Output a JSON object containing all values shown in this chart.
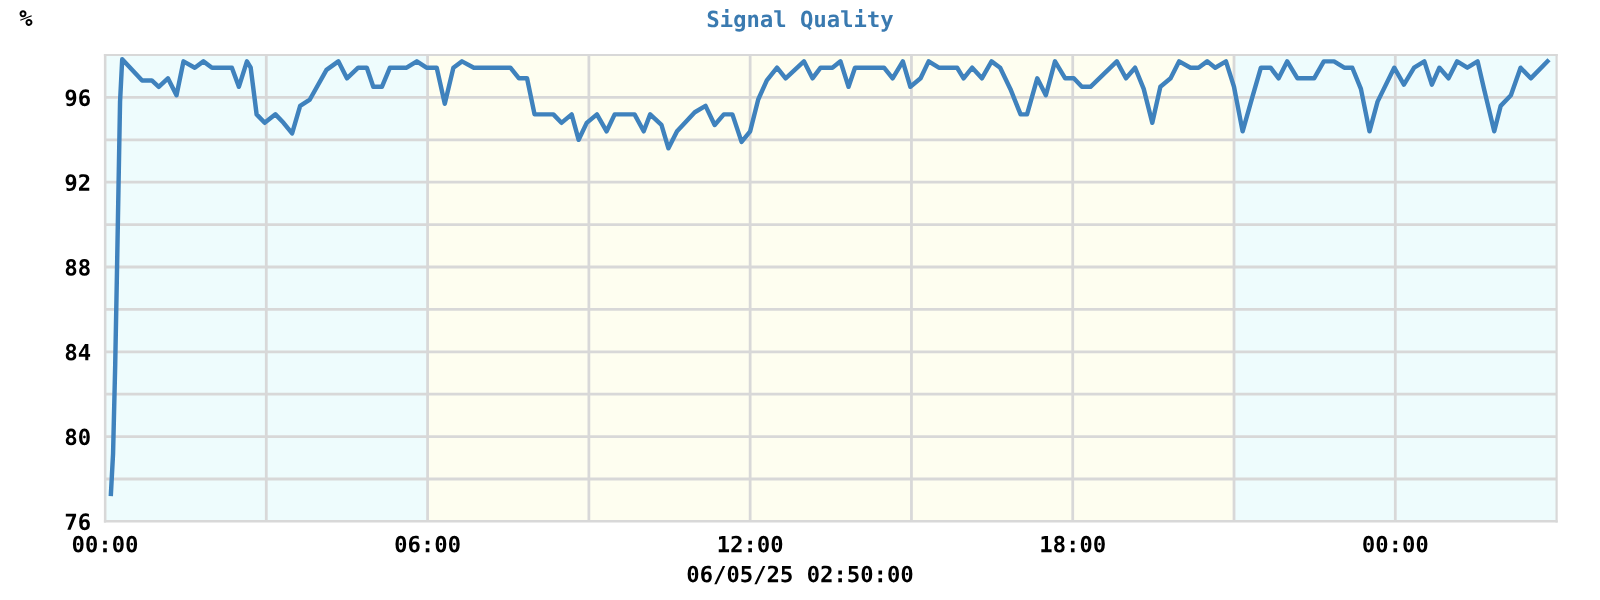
{
  "chart_data": {
    "type": "line",
    "title": "Signal Quality",
    "ylabel": "%",
    "xlabel": "06/05/25 02:50:00",
    "xlim": [
      0,
      27
    ],
    "ylim": [
      76,
      98
    ],
    "xticks": [
      {
        "value": 0,
        "label": "00:00"
      },
      {
        "value": 3,
        "label": null
      },
      {
        "value": 6,
        "label": "06:00"
      },
      {
        "value": 9,
        "label": null
      },
      {
        "value": 12,
        "label": "12:00"
      },
      {
        "value": 15,
        "label": null
      },
      {
        "value": 18,
        "label": "18:00"
      },
      {
        "value": 21,
        "label": null
      },
      {
        "value": 24,
        "label": "00:00"
      }
    ],
    "yticks": [
      76,
      {
        "value": 78,
        "label": null
      },
      80,
      {
        "value": 82,
        "label": null
      },
      84,
      {
        "value": 86,
        "label": null
      },
      88,
      {
        "value": 90,
        "label": null
      },
      92,
      {
        "value": 94,
        "label": null
      },
      96
    ],
    "grid": true,
    "legend": false,
    "bands": [
      {
        "axis": "x",
        "from": 0,
        "to": 6,
        "color": "#eefcfd"
      },
      {
        "axis": "x",
        "from": 6,
        "to": 21,
        "color": "#fefef0"
      },
      {
        "axis": "x",
        "from": 21,
        "to": 27,
        "color": "#eefcfd"
      }
    ],
    "series": [
      {
        "color": "#3f82bd",
        "x": [
          0.11,
          0.15,
          0.19,
          0.22,
          0.25,
          0.28,
          0.32,
          0.69,
          0.87,
          1.0,
          1.17,
          1.33,
          1.46,
          1.67,
          1.83,
          1.99,
          2.36,
          2.49,
          2.64,
          2.71,
          2.82,
          2.97,
          3.17,
          3.32,
          3.48,
          3.63,
          3.81,
          4.12,
          4.34,
          4.5,
          4.71,
          4.87,
          4.99,
          5.15,
          5.3,
          5.61,
          5.8,
          5.98,
          6.17,
          6.32,
          6.48,
          6.64,
          6.86,
          7.54,
          7.7,
          7.85,
          7.99,
          8.34,
          8.49,
          8.68,
          8.81,
          8.96,
          9.15,
          9.33,
          9.48,
          9.85,
          10.02,
          10.14,
          10.35,
          10.48,
          10.64,
          10.97,
          11.17,
          11.34,
          11.51,
          11.67,
          11.84,
          12.0,
          12.15,
          12.31,
          12.5,
          12.66,
          13.0,
          13.16,
          13.31,
          13.53,
          13.68,
          13.83,
          13.95,
          14.49,
          14.65,
          14.84,
          14.98,
          15.17,
          15.32,
          15.51,
          15.85,
          15.97,
          16.13,
          16.31,
          16.49,
          16.65,
          16.84,
          17.03,
          17.15,
          17.34,
          17.5,
          17.67,
          17.86,
          18.02,
          18.17,
          18.33,
          18.82,
          18.99,
          19.16,
          19.32,
          19.48,
          19.63,
          19.82,
          19.98,
          20.19,
          20.34,
          20.5,
          20.65,
          20.85,
          21.0,
          21.16,
          21.35,
          21.5,
          21.68,
          21.83,
          21.99,
          22.18,
          22.49,
          22.67,
          22.86,
          23.05,
          23.2,
          23.36,
          23.52,
          23.67,
          23.98,
          24.16,
          24.35,
          24.54,
          24.68,
          24.82,
          24.99,
          25.15,
          25.34,
          25.53,
          25.65,
          25.84,
          25.96,
          26.15,
          26.33,
          26.52,
          26.83
        ],
        "values": [
          77.3,
          79.2,
          83.4,
          87.4,
          91.6,
          95.8,
          97.8,
          96.8,
          96.8,
          96.5,
          96.9,
          96.1,
          97.7,
          97.4,
          97.7,
          97.4,
          97.4,
          96.5,
          97.7,
          97.4,
          95.2,
          94.8,
          95.2,
          94.8,
          94.3,
          95.6,
          95.9,
          97.3,
          97.7,
          96.9,
          97.4,
          97.4,
          96.5,
          96.5,
          97.4,
          97.4,
          97.7,
          97.4,
          97.4,
          95.7,
          97.4,
          97.7,
          97.4,
          97.4,
          96.9,
          96.9,
          95.2,
          95.2,
          94.8,
          95.2,
          94.0,
          94.8,
          95.2,
          94.4,
          95.2,
          95.2,
          94.4,
          95.2,
          94.7,
          93.6,
          94.4,
          95.3,
          95.6,
          94.7,
          95.2,
          95.2,
          93.9,
          94.4,
          95.9,
          96.8,
          97.4,
          96.9,
          97.7,
          96.9,
          97.4,
          97.4,
          97.7,
          96.5,
          97.4,
          97.4,
          96.9,
          97.7,
          96.5,
          96.9,
          97.7,
          97.4,
          97.4,
          96.9,
          97.4,
          96.9,
          97.7,
          97.4,
          96.4,
          95.2,
          95.2,
          96.9,
          96.1,
          97.7,
          96.9,
          96.9,
          96.5,
          96.5,
          97.7,
          96.9,
          97.4,
          96.4,
          94.8,
          96.5,
          96.9,
          97.7,
          97.4,
          97.4,
          97.7,
          97.4,
          97.7,
          96.5,
          94.4,
          96.1,
          97.4,
          97.4,
          96.9,
          97.7,
          96.9,
          96.9,
          97.7,
          97.7,
          97.4,
          97.4,
          96.4,
          94.4,
          95.8,
          97.4,
          96.6,
          97.4,
          97.7,
          96.6,
          97.4,
          96.9,
          97.7,
          97.4,
          97.7,
          96.4,
          94.4,
          95.6,
          96.1,
          97.4,
          96.9,
          97.7
        ]
      }
    ]
  }
}
